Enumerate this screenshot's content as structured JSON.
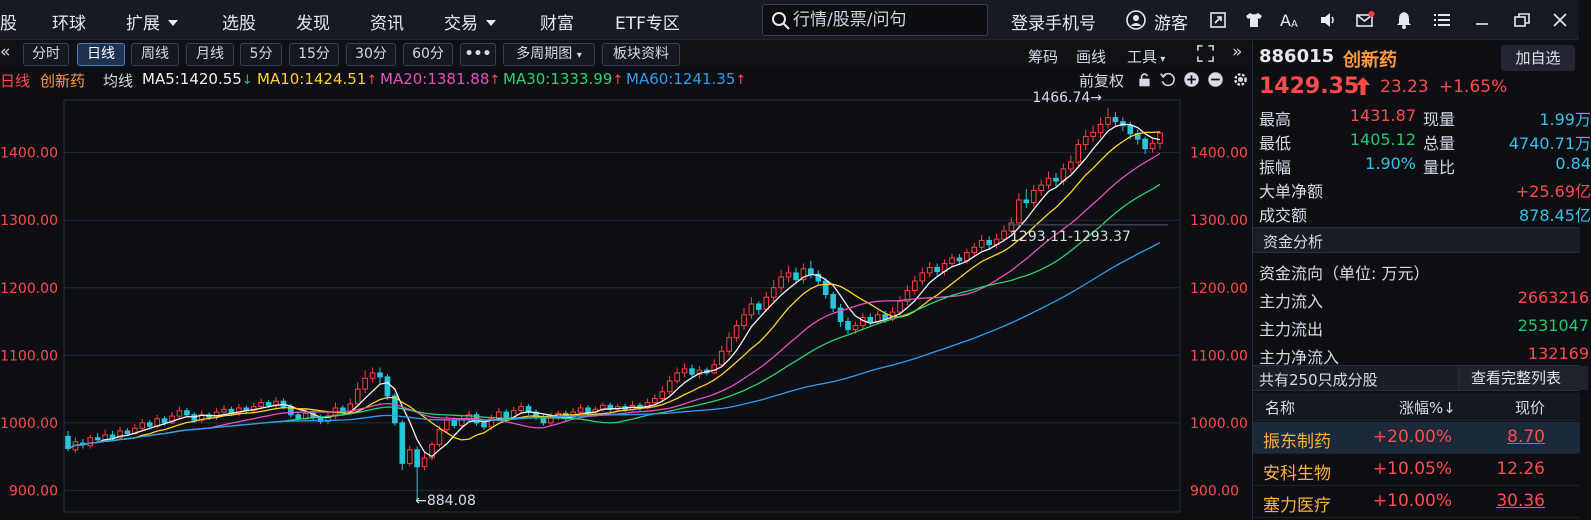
{
  "menu": {
    "items": [
      "股",
      "环球",
      "扩展",
      "选股",
      "发现",
      "资讯",
      "交易",
      "财富",
      "ETF专区"
    ],
    "search_placeholder": "行情/股票/问句",
    "login": "登录手机号",
    "guest": "游客"
  },
  "toolbar": {
    "periods": [
      "分时",
      "日线",
      "周线",
      "月线",
      "5分",
      "15分",
      "30分",
      "60分",
      "•••",
      "多周期图",
      "板块资料"
    ],
    "active": "日线",
    "right_tools": [
      "筹码",
      "画线",
      "工具"
    ]
  },
  "legend": {
    "period": "日线",
    "name": "创新药",
    "ma_label": "均线",
    "ma": [
      {
        "text": "MA5:1420.55",
        "dir": "down",
        "color": "#f2f2f2"
      },
      {
        "text": "MA10:1424.51",
        "dir": "up",
        "color": "#ffd12a"
      },
      {
        "text": "MA20:1381.88",
        "dir": "up",
        "color": "#e84fc0"
      },
      {
        "text": "MA30:1333.99",
        "dir": "up",
        "color": "#2ed06d"
      },
      {
        "text": "MA60:1241.35",
        "dir": "up",
        "color": "#2f9cf0"
      }
    ],
    "adjust": "前复权"
  },
  "quote": {
    "code": "886015",
    "name": "创新药",
    "add_btn": "加自选",
    "price": "1429.35",
    "change": "23.23",
    "pct": "+1.65%",
    "stats": [
      {
        "k1": "最高",
        "v1": "1431.87",
        "c1": "red",
        "k2": "现量",
        "v2": "1.99万",
        "c2": "cyan"
      },
      {
        "k1": "最低",
        "v1": "1405.12",
        "c1": "green",
        "k2": "总量",
        "v2": "4740.71万",
        "c2": "cyan"
      },
      {
        "k1": "振幅",
        "v1": "1.90%",
        "c1": "cyan",
        "k2": "量比",
        "v2": "0.84",
        "c2": "cyan"
      }
    ],
    "big_net_label": "大单净额",
    "big_net": "+25.69亿",
    "turnover_label": "成交额",
    "turnover": "878.45亿"
  },
  "fund": {
    "title": "资金分析",
    "unit": "资金流向（单位: 万元）",
    "rows": [
      {
        "k": "主力流入",
        "v": "2663216",
        "c": "red"
      },
      {
        "k": "主力流出",
        "v": "2531047",
        "c": "green"
      },
      {
        "k": "主力净流入",
        "v": "132169",
        "c": "red"
      }
    ]
  },
  "constituents": {
    "count_text": "共有250只成分股",
    "full_btn": "查看完整列表",
    "headers": [
      "名称",
      "涨幅%",
      "现价"
    ],
    "rows": [
      {
        "name": "振东制药",
        "pct": "+20.00%",
        "price": "8.70"
      },
      {
        "name": "安科生物",
        "pct": "+10.05%",
        "price": "12.26"
      },
      {
        "name": "塞力医疗",
        "pct": "+10.00%",
        "price": "30.36"
      }
    ]
  },
  "chart_data": {
    "type": "candlestick",
    "title": "创新药 日线",
    "y_ticks": [
      900,
      1000,
      1100,
      1200,
      1300,
      1400
    ],
    "ylim": [
      868,
      1478
    ],
    "annotations": {
      "high": "1466.74→",
      "low": "←884.08",
      "mid": "1293.11-1293.37"
    },
    "candles": [
      [
        980,
        962,
        988,
        958
      ],
      [
        960,
        972,
        978,
        955
      ],
      [
        970,
        968,
        976,
        962
      ],
      [
        966,
        978,
        982,
        962
      ],
      [
        978,
        975,
        985,
        970
      ],
      [
        975,
        982,
        990,
        972
      ],
      [
        982,
        978,
        988,
        974
      ],
      [
        978,
        988,
        994,
        976
      ],
      [
        988,
        984,
        992,
        980
      ],
      [
        984,
        992,
        998,
        982
      ],
      [
        992,
        1000,
        1006,
        988
      ],
      [
        1000,
        995,
        1004,
        990
      ],
      [
        995,
        1006,
        1012,
        992
      ],
      [
        1006,
        1000,
        1010,
        996
      ],
      [
        1000,
        1010,
        1016,
        998
      ],
      [
        1010,
        1018,
        1024,
        1006
      ],
      [
        1018,
        1012,
        1022,
        1008
      ],
      [
        1012,
        1004,
        1016,
        1000
      ],
      [
        1004,
        1012,
        1018,
        1000
      ],
      [
        1012,
        1008,
        1016,
        1004
      ],
      [
        1008,
        1016,
        1022,
        1004
      ],
      [
        1016,
        1020,
        1026,
        1012
      ],
      [
        1020,
        1014,
        1024,
        1010
      ],
      [
        1014,
        1022,
        1028,
        1010
      ],
      [
        1022,
        1018,
        1026,
        1014
      ],
      [
        1018,
        1024,
        1030,
        1014
      ],
      [
        1024,
        1030,
        1036,
        1020
      ],
      [
        1030,
        1026,
        1034,
        1022
      ],
      [
        1026,
        1032,
        1038,
        1022
      ],
      [
        1032,
        1024,
        1036,
        1020
      ],
      [
        1024,
        1012,
        1028,
        1008
      ],
      [
        1012,
        1006,
        1016,
        1002
      ],
      [
        1006,
        1014,
        1020,
        1002
      ],
      [
        1014,
        1008,
        1018,
        1004
      ],
      [
        1008,
        1002,
        1012,
        998
      ],
      [
        1002,
        1010,
        1018,
        998
      ],
      [
        1010,
        1022,
        1030,
        1006
      ],
      [
        1022,
        1016,
        1026,
        1012
      ],
      [
        1016,
        1028,
        1036,
        1012
      ],
      [
        1028,
        1050,
        1060,
        1024
      ],
      [
        1050,
        1066,
        1078,
        1044
      ],
      [
        1066,
        1074,
        1082,
        1060
      ],
      [
        1074,
        1068,
        1082,
        1058
      ],
      [
        1068,
        1040,
        1072,
        1034
      ],
      [
        1040,
        1000,
        1044,
        996
      ],
      [
        1000,
        940,
        1004,
        930
      ],
      [
        940,
        960,
        966,
        936
      ],
      [
        960,
        935,
        965,
        884
      ],
      [
        935,
        948,
        956,
        930
      ],
      [
        948,
        968,
        972,
        944
      ],
      [
        968,
        990,
        996,
        964
      ],
      [
        990,
        1004,
        1010,
        986
      ],
      [
        1004,
        996,
        1008,
        992
      ],
      [
        996,
        1006,
        1012,
        992
      ],
      [
        1006,
        1012,
        1018,
        1002
      ],
      [
        1012,
        1000,
        1016,
        996
      ],
      [
        1000,
        994,
        1004,
        990
      ],
      [
        994,
        1006,
        1012,
        990
      ],
      [
        1006,
        1016,
        1022,
        1002
      ],
      [
        1016,
        1008,
        1020,
        1004
      ],
      [
        1008,
        1018,
        1024,
        1004
      ],
      [
        1018,
        1024,
        1030,
        1014
      ],
      [
        1024,
        1016,
        1028,
        1012
      ],
      [
        1016,
        1008,
        1020,
        1004
      ],
      [
        1008,
        1000,
        1012,
        996
      ],
      [
        1000,
        1008,
        1014,
        996
      ],
      [
        1008,
        1014,
        1018,
        1004
      ],
      [
        1014,
        1006,
        1018,
        1002
      ],
      [
        1006,
        1016,
        1022,
        1004
      ],
      [
        1016,
        1022,
        1028,
        1012
      ],
      [
        1022,
        1016,
        1026,
        1010
      ],
      [
        1016,
        1020,
        1024,
        1012
      ],
      [
        1020,
        1026,
        1030,
        1016
      ],
      [
        1026,
        1020,
        1030,
        1016
      ],
      [
        1020,
        1024,
        1028,
        1016
      ],
      [
        1024,
        1020,
        1028,
        1016
      ],
      [
        1020,
        1026,
        1032,
        1018
      ],
      [
        1026,
        1022,
        1030,
        1018
      ],
      [
        1022,
        1030,
        1036,
        1020
      ],
      [
        1030,
        1036,
        1042,
        1026
      ],
      [
        1036,
        1046,
        1054,
        1032
      ],
      [
        1046,
        1062,
        1070,
        1042
      ],
      [
        1062,
        1074,
        1082,
        1058
      ],
      [
        1074,
        1080,
        1088,
        1068
      ],
      [
        1080,
        1072,
        1086,
        1068
      ],
      [
        1072,
        1078,
        1084,
        1066
      ],
      [
        1078,
        1074,
        1082,
        1070
      ],
      [
        1074,
        1086,
        1094,
        1072
      ],
      [
        1086,
        1106,
        1114,
        1082
      ],
      [
        1106,
        1126,
        1134,
        1100
      ],
      [
        1126,
        1144,
        1152,
        1120
      ],
      [
        1144,
        1160,
        1170,
        1138
      ],
      [
        1160,
        1176,
        1186,
        1154
      ],
      [
        1176,
        1168,
        1180,
        1160
      ],
      [
        1168,
        1186,
        1194,
        1164
      ],
      [
        1186,
        1200,
        1212,
        1180
      ],
      [
        1200,
        1216,
        1226,
        1194
      ],
      [
        1216,
        1222,
        1232,
        1208
      ],
      [
        1222,
        1212,
        1230,
        1206
      ],
      [
        1212,
        1228,
        1236,
        1206
      ],
      [
        1228,
        1220,
        1240,
        1214
      ],
      [
        1220,
        1210,
        1226,
        1204
      ],
      [
        1210,
        1190,
        1214,
        1184
      ],
      [
        1190,
        1170,
        1194,
        1164
      ],
      [
        1170,
        1150,
        1176,
        1142
      ],
      [
        1150,
        1138,
        1156,
        1132
      ],
      [
        1138,
        1144,
        1150,
        1132
      ],
      [
        1144,
        1156,
        1162,
        1138
      ],
      [
        1156,
        1150,
        1162,
        1144
      ],
      [
        1150,
        1160,
        1166,
        1146
      ],
      [
        1160,
        1154,
        1166,
        1148
      ],
      [
        1154,
        1164,
        1172,
        1150
      ],
      [
        1164,
        1180,
        1188,
        1158
      ],
      [
        1180,
        1196,
        1204,
        1174
      ],
      [
        1196,
        1210,
        1218,
        1190
      ],
      [
        1210,
        1222,
        1230,
        1204
      ],
      [
        1222,
        1230,
        1238,
        1216
      ],
      [
        1230,
        1224,
        1236,
        1218
      ],
      [
        1224,
        1236,
        1242,
        1218
      ],
      [
        1236,
        1244,
        1250,
        1230
      ],
      [
        1244,
        1240,
        1250,
        1234
      ],
      [
        1240,
        1252,
        1258,
        1236
      ],
      [
        1252,
        1260,
        1266,
        1246
      ],
      [
        1260,
        1270,
        1278,
        1254
      ],
      [
        1270,
        1264,
        1276,
        1258
      ],
      [
        1264,
        1272,
        1280,
        1258
      ],
      [
        1272,
        1284,
        1292,
        1268
      ],
      [
        1284,
        1296,
        1304,
        1278
      ],
      [
        1296,
        1330,
        1340,
        1290
      ],
      [
        1330,
        1326,
        1346,
        1318
      ],
      [
        1326,
        1344,
        1352,
        1320
      ],
      [
        1344,
        1352,
        1360,
        1336
      ],
      [
        1352,
        1362,
        1372,
        1346
      ],
      [
        1362,
        1358,
        1370,
        1350
      ],
      [
        1358,
        1376,
        1384,
        1352
      ],
      [
        1376,
        1386,
        1396,
        1370
      ],
      [
        1386,
        1412,
        1420,
        1380
      ],
      [
        1412,
        1424,
        1434,
        1404
      ],
      [
        1424,
        1430,
        1440,
        1416
      ],
      [
        1430,
        1442,
        1452,
        1422
      ],
      [
        1442,
        1452,
        1466,
        1436
      ],
      [
        1452,
        1446,
        1460,
        1438
      ],
      [
        1446,
        1440,
        1452,
        1432
      ],
      [
        1440,
        1428,
        1446,
        1420
      ],
      [
        1428,
        1420,
        1434,
        1412
      ],
      [
        1420,
        1406,
        1424,
        1398
      ],
      [
        1406,
        1414,
        1420,
        1400
      ],
      [
        1414,
        1429,
        1432,
        1405
      ]
    ]
  }
}
